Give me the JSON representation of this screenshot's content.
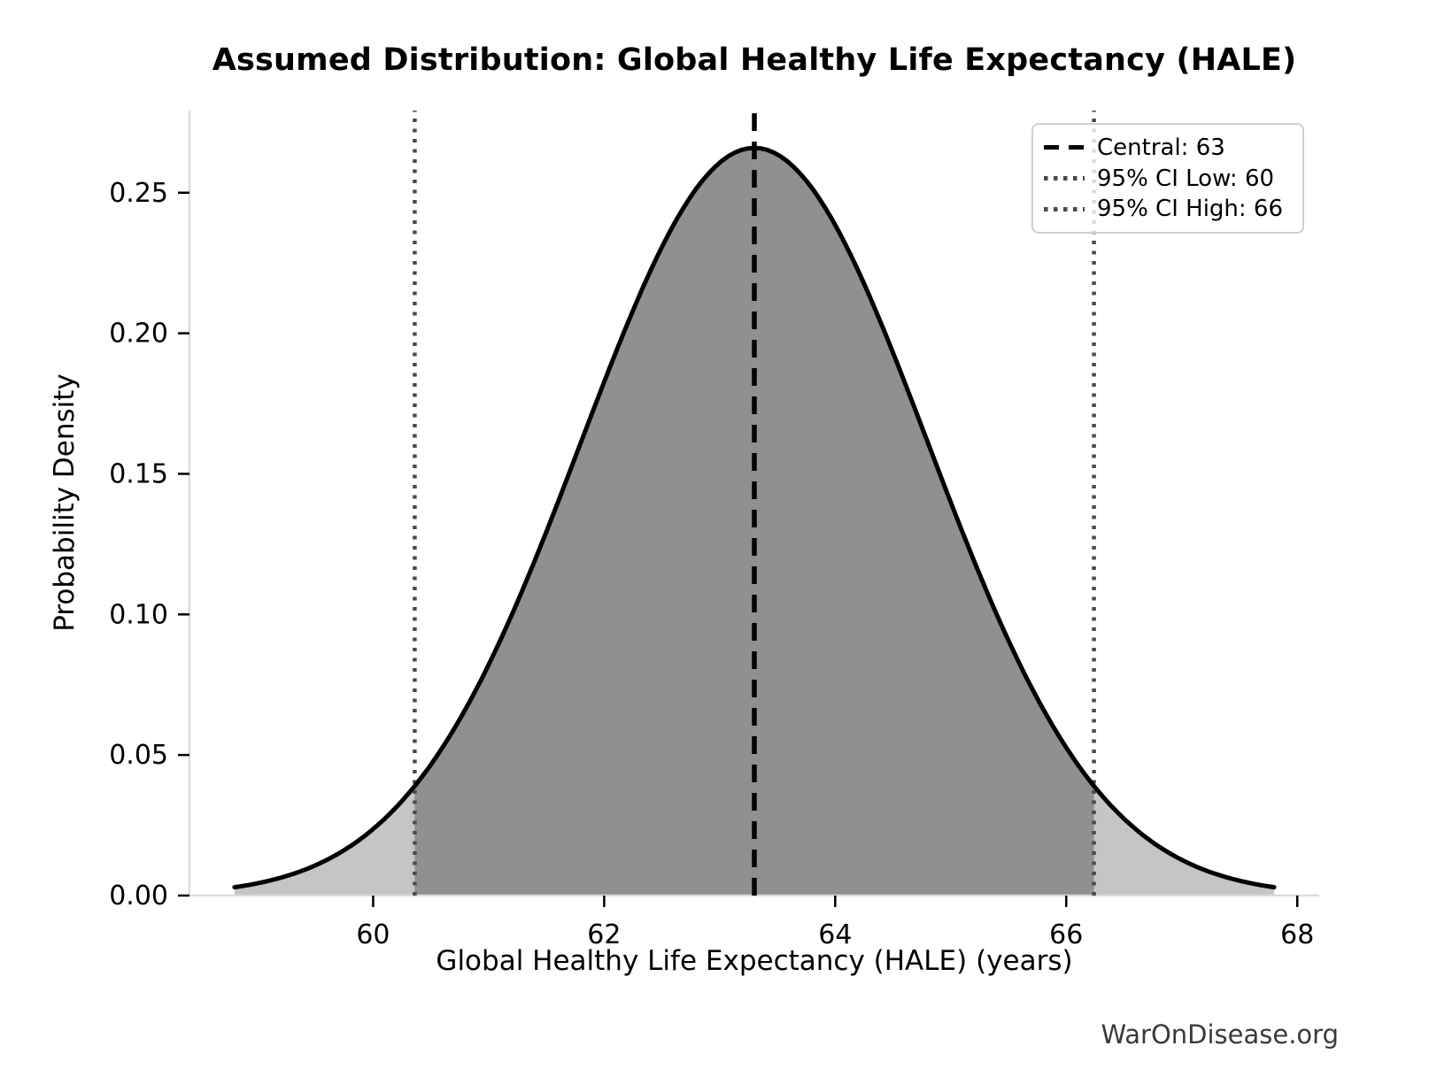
{
  "page": {
    "watermark": "WarOnDisease.org"
  },
  "chart_data": {
    "type": "area",
    "title": "Assumed Distribution: Global Healthy Life Expectancy (HALE)",
    "xlabel": "Global Healthy Life Expectancy (HALE) (years)",
    "ylabel": "Probability Density",
    "grid": false,
    "legend_position": "upper right",
    "distribution": {
      "kind": "normal",
      "mu": 63.3,
      "sigma": 1.5,
      "x_min": 58.8,
      "x_max": 67.8,
      "peak_density": 0.266
    },
    "central_line": {
      "value": 63.3,
      "label": "Central: 63"
    },
    "ci_low_line": {
      "value": 60.36,
      "label": "95% CI Low: 60"
    },
    "ci_high_line": {
      "value": 66.24,
      "label": "95% CI High: 66"
    },
    "legend": [
      {
        "label": "Central: 63",
        "style": "dashed-black"
      },
      {
        "label": "95% CI Low: 60",
        "style": "dotted-gray"
      },
      {
        "label": "95% CI High: 66",
        "style": "dotted-gray"
      }
    ],
    "curve_points": {
      "x": [
        58.8,
        59.3,
        59.8,
        60.3,
        60.8,
        61.3,
        61.8,
        62.3,
        62.8,
        63.3,
        63.8,
        64.3,
        64.8,
        65.3,
        65.8,
        66.3,
        66.8,
        67.3,
        67.8
      ],
      "density": [
        0.003,
        0.0076,
        0.0175,
        0.036,
        0.0663,
        0.1093,
        0.1613,
        0.213,
        0.2516,
        0.266,
        0.2516,
        0.213,
        0.1613,
        0.1093,
        0.0663,
        0.036,
        0.0175,
        0.0076,
        0.003
      ]
    },
    "x_ticks": [
      "60",
      "62",
      "64",
      "66",
      "68"
    ],
    "y_ticks": [
      "0.00",
      "0.05",
      "0.10",
      "0.15",
      "0.20",
      "0.25"
    ],
    "xlim": [
      58.41,
      68.19
    ],
    "ylim": [
      0,
      0.2792
    ],
    "colors": {
      "curve": "#000000",
      "inner_fill": "#909090",
      "tail_fill": "#c5c5c5",
      "central_line": "#000000",
      "ci_line": "#4a4a4a",
      "spine": "#dcdcdc",
      "tick": "#000000",
      "text": "#000000",
      "watermark": "#3a3a3a"
    }
  }
}
